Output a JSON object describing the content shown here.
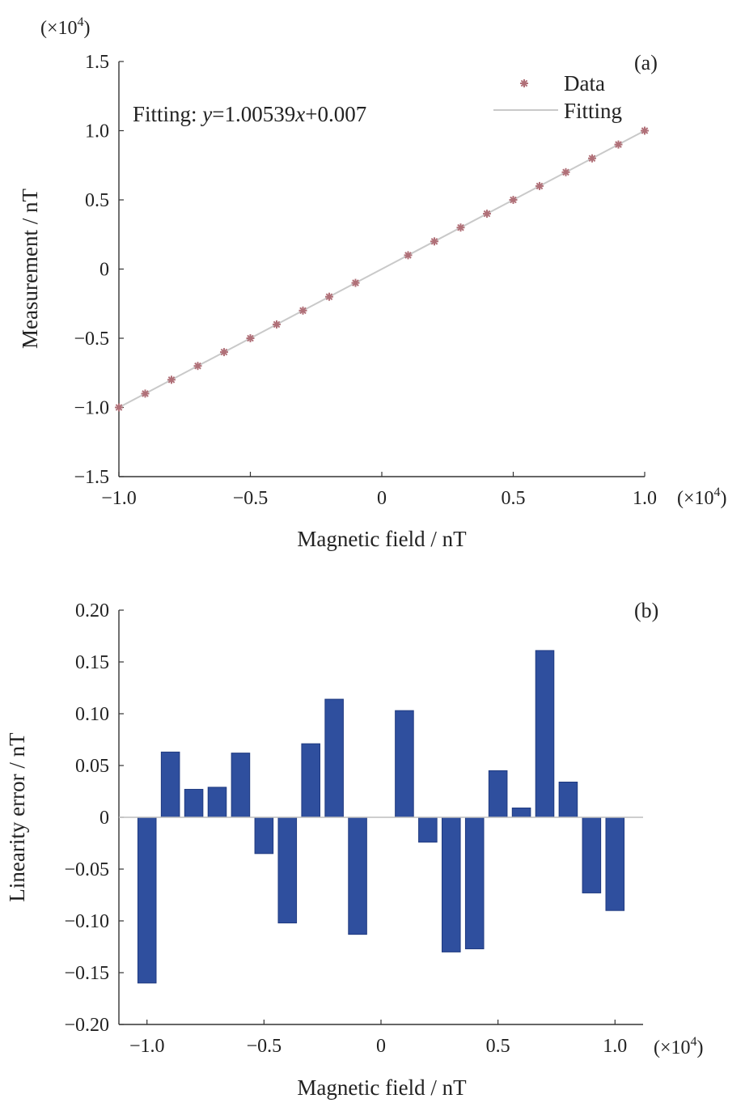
{
  "chart_data": [
    {
      "type": "scatter",
      "panel_label": "(a)",
      "xlabel": "Magnetic field / nT",
      "ylabel": "Measurement / nT",
      "x_multiplier": "(×10",
      "y_multiplier": "(×10",
      "multiplier_exp": "4",
      "multiplier_close": ")",
      "xlim": [
        -1.0,
        1.0
      ],
      "ylim": [
        -1.5,
        1.5
      ],
      "xticks": [
        -1.0,
        -0.5,
        0,
        0.5,
        1.0
      ],
      "xtick_labels": [
        "−1.0",
        "−0.5",
        "0",
        "0.5",
        "1.0"
      ],
      "yticks": [
        -1.5,
        -1.0,
        -0.5,
        0,
        0.5,
        1.0,
        1.5
      ],
      "ytick_labels": [
        "−1.5",
        "−1.0",
        "−0.5",
        "0",
        "0.5",
        "1.0",
        "1.5"
      ],
      "grid": false,
      "legend_position": "top-right",
      "annotation": {
        "prefix": "Fitting: ",
        "y_var": "y",
        "mid": "=1.00539",
        "x_var": "x",
        "suffix": "+0.007"
      },
      "fit": {
        "slope": 1.00539,
        "intercept": 0.007
      },
      "series": [
        {
          "name": "Data",
          "marker": "asterisk",
          "color": "#b07078",
          "x": [
            -1.0,
            -0.9,
            -0.8,
            -0.7,
            -0.6,
            -0.5,
            -0.4,
            -0.3,
            -0.2,
            -0.1,
            0.1,
            0.2,
            0.3,
            0.4,
            0.5,
            0.6,
            0.7,
            0.8,
            0.9,
            1.0
          ],
          "y": [
            -1.0,
            -0.9,
            -0.8,
            -0.7,
            -0.6,
            -0.5,
            -0.4,
            -0.3,
            -0.2,
            -0.1,
            0.1,
            0.2,
            0.3,
            0.4,
            0.5,
            0.6,
            0.7,
            0.8,
            0.9,
            1.0
          ]
        },
        {
          "name": "Fitting",
          "type": "line",
          "color": "#c9c9c9",
          "x": [
            -1.0,
            1.0
          ],
          "y": [
            -1.0,
            1.0
          ]
        }
      ]
    },
    {
      "type": "bar",
      "panel_label": "(b)",
      "xlabel": "Magnetic field / nT",
      "ylabel": "Linearity error / nT",
      "x_multiplier": "(×10",
      "multiplier_exp": "4",
      "multiplier_close": ")",
      "xlim": [
        -1.12,
        1.12
      ],
      "ylim": [
        -0.2,
        0.2
      ],
      "xticks": [
        -1.0,
        -0.5,
        0,
        0.5,
        1.0
      ],
      "xtick_labels": [
        "−1.0",
        "−0.5",
        "0",
        "0.5",
        "1.0"
      ],
      "yticks": [
        -0.2,
        -0.15,
        -0.1,
        -0.05,
        0,
        0.05,
        0.1,
        0.15,
        0.2
      ],
      "ytick_labels": [
        "−0.20",
        "−0.15",
        "−0.10",
        "−0.05",
        "0",
        "0.05",
        "0.10",
        "0.15",
        "0.20"
      ],
      "grid": false,
      "bar_color": "#2f4f9e",
      "x": [
        -1.0,
        -0.9,
        -0.8,
        -0.7,
        -0.6,
        -0.5,
        -0.4,
        -0.3,
        -0.2,
        -0.1,
        0.1,
        0.2,
        0.3,
        0.4,
        0.5,
        0.6,
        0.7,
        0.8,
        0.9,
        1.0
      ],
      "values": [
        -0.16,
        0.063,
        0.027,
        0.029,
        0.062,
        -0.035,
        -0.102,
        0.071,
        0.114,
        -0.113,
        0.103,
        -0.024,
        -0.13,
        -0.127,
        0.045,
        0.009,
        0.161,
        0.034,
        -0.073,
        -0.09
      ]
    }
  ]
}
